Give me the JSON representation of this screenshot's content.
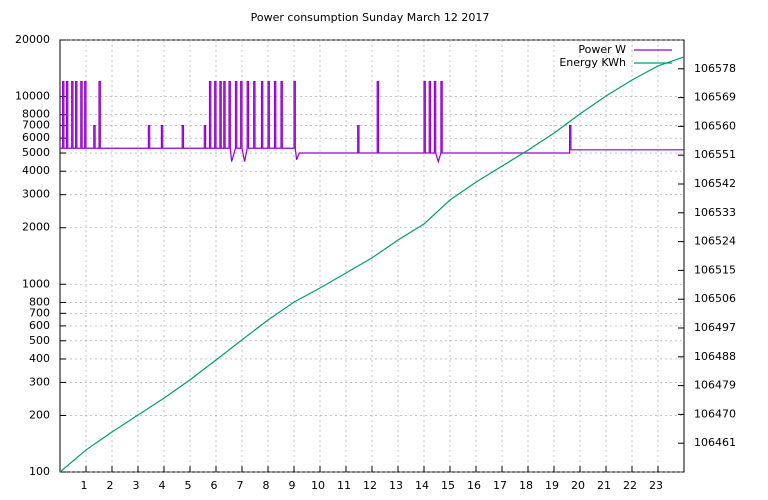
{
  "chart_data": {
    "type": "line",
    "title": "Power consumption Sunday March 12 2017",
    "xlim": [
      0,
      24
    ],
    "xticks": [
      1,
      2,
      3,
      4,
      5,
      6,
      7,
      8,
      9,
      10,
      11,
      12,
      13,
      14,
      15,
      16,
      17,
      18,
      19,
      20,
      21,
      22,
      23
    ],
    "ylim": [
      100,
      20000
    ],
    "yscale": "log",
    "yticks": [
      100,
      200,
      300,
      400,
      500,
      600,
      700,
      800,
      1000,
      2000,
      3000,
      4000,
      5000,
      6000,
      7000,
      8000,
      10000,
      20000
    ],
    "y2lim": [
      106452,
      106587
    ],
    "y2ticks": [
      106461,
      106470,
      106479,
      106488,
      106497,
      106506,
      106515,
      106524,
      106533,
      106542,
      106551,
      106560,
      106569,
      106578
    ],
    "grid": true,
    "legend": "top-right",
    "series": [
      {
        "name": "Power W",
        "color": "#9400d3",
        "x": [
          0,
          0.1,
          0.1,
          0.15,
          0.15,
          0.25,
          0.25,
          0.3,
          0.3,
          0.45,
          0.45,
          0.5,
          0.5,
          0.6,
          0.6,
          0.65,
          0.65,
          0.8,
          0.8,
          0.85,
          0.85,
          0.95,
          0.95,
          1.0,
          1.0,
          1.3,
          1.3,
          1.35,
          1.35,
          1.5,
          1.5,
          1.55,
          1.55,
          3.4,
          3.4,
          3.45,
          3.45,
          3.9,
          3.9,
          3.95,
          3.95,
          4.7,
          4.7,
          4.75,
          4.75,
          5.55,
          5.55,
          5.6,
          5.6,
          5.75,
          5.75,
          5.8,
          5.8,
          5.95,
          5.95,
          6.0,
          6.0,
          6.15,
          6.15,
          6.2,
          6.2,
          6.3,
          6.3,
          6.35,
          6.35,
          6.5,
          6.5,
          6.55,
          6.55,
          6.6,
          6.75,
          6.75,
          6.8,
          6.8,
          6.95,
          6.95,
          7.0,
          7.0,
          7.1,
          7.2,
          7.2,
          7.25,
          7.25,
          7.45,
          7.45,
          7.5,
          7.5,
          7.75,
          7.75,
          7.8,
          7.8,
          8.0,
          8.0,
          8.05,
          8.05,
          8.25,
          8.25,
          8.3,
          8.3,
          8.5,
          8.5,
          8.55,
          8.55,
          9.0,
          9.0,
          9.05,
          9.05,
          9.1,
          9.2,
          11.45,
          11.45,
          11.5,
          11.5,
          12.2,
          12.2,
          12.25,
          12.25,
          14.0,
          14.0,
          14.05,
          14.05,
          14.2,
          14.2,
          14.25,
          14.25,
          14.4,
          14.4,
          14.45,
          14.45,
          14.55,
          14.65,
          14.65,
          14.7,
          14.7,
          19.6,
          19.6,
          19.65,
          19.65,
          24
        ],
        "values": [
          5300,
          5300,
          12000,
          12000,
          5300,
          5300,
          12000,
          12000,
          5300,
          5300,
          12000,
          12000,
          5300,
          5300,
          12000,
          12000,
          5300,
          5300,
          12000,
          12000,
          5300,
          5300,
          12000,
          12000,
          5300,
          5300,
          7000,
          7000,
          5300,
          5300,
          12000,
          12000,
          5300,
          5300,
          7000,
          7000,
          5300,
          5300,
          7000,
          7000,
          5300,
          5300,
          7000,
          7000,
          5300,
          5300,
          7000,
          7000,
          5300,
          5300,
          12000,
          12000,
          5300,
          5300,
          12000,
          12000,
          5300,
          5300,
          12000,
          12000,
          5300,
          5300,
          12000,
          12000,
          5300,
          5300,
          12000,
          12000,
          5300,
          4500,
          5300,
          12000,
          12000,
          5300,
          5300,
          12000,
          12000,
          5300,
          4500,
          5300,
          12000,
          12000,
          5300,
          5300,
          12000,
          12000,
          5300,
          5300,
          12000,
          12000,
          5300,
          5300,
          12000,
          12000,
          5300,
          5300,
          12000,
          12000,
          5300,
          5300,
          12000,
          12000,
          5300,
          5300,
          12000,
          12000,
          5300,
          4600,
          5000,
          5000,
          7000,
          7000,
          5000,
          5000,
          12000,
          12000,
          5000,
          5000,
          12000,
          12000,
          5000,
          5000,
          12000,
          12000,
          5000,
          5000,
          12000,
          12000,
          5000,
          4500,
          5000,
          12000,
          12000,
          5000,
          5000,
          7000,
          7000,
          5200,
          5200
        ]
      },
      {
        "name": "Energy KWh",
        "color": "#009e73",
        "axis": "y2",
        "x": [
          0,
          1,
          2,
          3,
          4,
          5,
          6,
          7,
          8,
          9,
          10,
          11,
          12,
          13,
          14,
          15,
          16,
          17,
          18,
          19,
          20,
          21,
          22,
          23,
          24
        ],
        "values": [
          106452,
          106458.9,
          106464.5,
          106469.8,
          106475.1,
          106480.8,
          106487,
          106493.3,
          106499.5,
          106505.1,
          106509.5,
          106514.2,
          106518.9,
          106524.5,
          106529.5,
          106537,
          106542.6,
          106547.6,
          106552.6,
          106557.9,
          106563.9,
          106569.5,
          106574.5,
          106578.9,
          106581.7
        ]
      }
    ]
  }
}
